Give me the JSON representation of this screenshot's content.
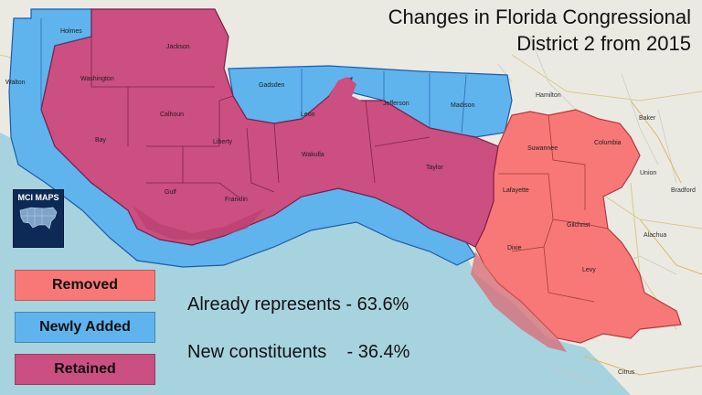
{
  "title": {
    "line1": "Changes in Florida Congressional",
    "line2": "District 2 from 2015"
  },
  "logo": {
    "text": "MCI MAPS"
  },
  "legend": {
    "removed": {
      "label": "Removed",
      "color": "#f87878"
    },
    "added": {
      "label": "Newly Added",
      "color": "#5fb4ee"
    },
    "retained": {
      "label": "Retained",
      "color": "#cb4f80"
    }
  },
  "stats": {
    "already": "Already represents - 63.6%",
    "new": "New constituents    - 36.4%"
  },
  "counties": {
    "holmes": "Holmes",
    "jackson": "Jackson",
    "walton": "Walton",
    "washington": "Washington",
    "gadsden": "Gadsden",
    "leon": "Leon",
    "jefferson": "Jefferson",
    "madison": "Madison",
    "hamilton": "Hamilton",
    "baker": "Baker",
    "calhoun": "Calhoun",
    "bay": "Bay",
    "liberty": "Liberty",
    "wakulla": "Wakulla",
    "taylor": "Taylor",
    "suwannee": "Suwannee",
    "columbia": "Columbia",
    "union": "Union",
    "bradford": "Bradford",
    "gulf": "Gulf",
    "franklin": "Franklin",
    "lafayette": "Lafayette",
    "gilchrist": "Gilchrist",
    "alachua": "Alachua",
    "dixie": "Dixie",
    "levy": "Levy",
    "citrus": "Citrus"
  }
}
